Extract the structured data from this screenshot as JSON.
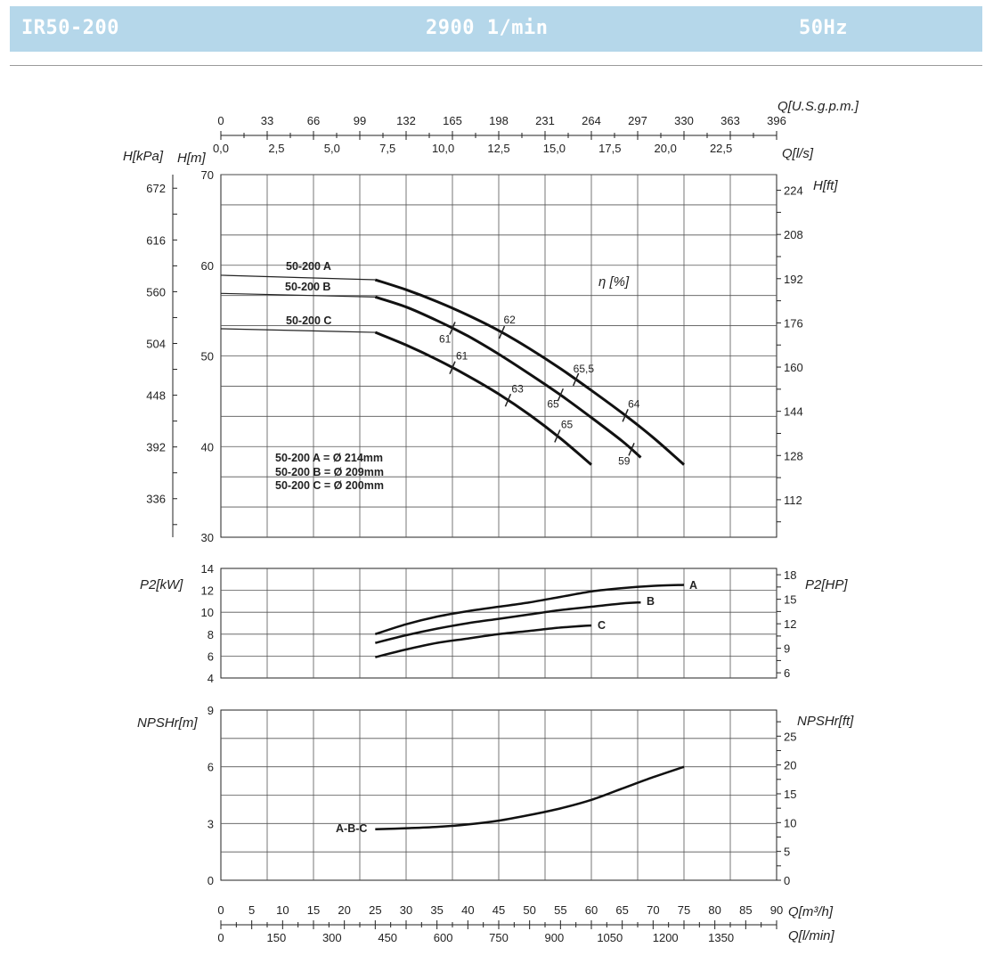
{
  "header": {
    "model": "IR50-200",
    "speed": "2900 1/min",
    "frequency": "50Hz"
  },
  "axes": {
    "q_usgpm": {
      "label": "Q[U.S.g.p.m.]",
      "ticks": [
        "0",
        "33",
        "66",
        "99",
        "132",
        "165",
        "198",
        "231",
        "264",
        "297",
        "330",
        "363",
        "396"
      ]
    },
    "q_ls": {
      "label": "Q[l/s]",
      "ticks": [
        "0,0",
        "2,5",
        "5,0",
        "7,5",
        "10,0",
        "12,5",
        "15,0",
        "17,5",
        "20,0",
        "22,5"
      ]
    },
    "q_m3h": {
      "label": "Q[m³/h]",
      "ticks": [
        "0",
        "5",
        "10",
        "15",
        "20",
        "25",
        "30",
        "35",
        "40",
        "45",
        "50",
        "55",
        "60",
        "65",
        "70",
        "75",
        "80",
        "85",
        "90"
      ]
    },
    "q_lmin": {
      "label": "Q[l/min]",
      "ticks": [
        "0",
        "150",
        "300",
        "450",
        "600",
        "750",
        "900",
        "1050",
        "1200",
        "1350"
      ]
    },
    "h_kpa": {
      "label": "H[kPa]",
      "ticks": [
        "672",
        "616",
        "560",
        "504",
        "448",
        "392",
        "336"
      ]
    },
    "h_m": {
      "label": "H[m]",
      "ticks": [
        "70",
        "60",
        "50",
        "40",
        "30"
      ]
    },
    "h_ft": {
      "label": "H[ft]",
      "ticks": [
        "224",
        "208",
        "192",
        "176",
        "160",
        "144",
        "128",
        "112"
      ]
    },
    "p2_kw": {
      "label": "P2[kW]",
      "ticks": [
        "14",
        "12",
        "10",
        "8",
        "6",
        "4"
      ]
    },
    "p2_hp": {
      "label": "P2[HP]",
      "ticks": [
        "18",
        "15",
        "12",
        "9",
        "6"
      ]
    },
    "npsh_m": {
      "label": "NPSHr[m]",
      "ticks": [
        "9",
        "6",
        "3",
        "0"
      ]
    },
    "npsh_ft": {
      "label": "NPSHr[ft]",
      "ticks": [
        "25",
        "20",
        "15",
        "10",
        "5",
        "0"
      ]
    }
  },
  "efficiency_label": "η [%]",
  "curve_labels": {
    "a": "50-200 A",
    "b": "50-200 B",
    "c": "50-200 C"
  },
  "diameters": [
    "50-200 A = Ø 214mm",
    "50-200 B = Ø 209mm",
    "50-200 C = Ø 200mm"
  ],
  "power_labels": {
    "a": "A",
    "b": "B",
    "c": "C"
  },
  "npsh_label": "A-B-C",
  "chart_data": [
    {
      "type": "line",
      "title": "",
      "xlabel": "Q[m³/h]",
      "ylabel": "H[m]",
      "xlim": [
        0,
        90
      ],
      "ylim": [
        30,
        70
      ],
      "series": [
        {
          "name": "50-200 A",
          "x": [
            0,
            25,
            30,
            35,
            40,
            45,
            50,
            55,
            60,
            65,
            70,
            75
          ],
          "y": [
            58.9,
            58.4,
            57.3,
            56.0,
            54.5,
            52.8,
            50.8,
            48.6,
            46.2,
            43.7,
            41.0,
            38.0
          ]
        },
        {
          "name": "50-200 B",
          "x": [
            0,
            25,
            30,
            35,
            40,
            45,
            50,
            55,
            60,
            65,
            68
          ],
          "y": [
            56.9,
            56.5,
            55.4,
            53.9,
            52.2,
            50.2,
            48.0,
            45.7,
            43.2,
            40.6,
            38.8
          ]
        },
        {
          "name": "50-200 C",
          "x": [
            0,
            25,
            30,
            35,
            40,
            45,
            50,
            55,
            60
          ],
          "y": [
            53.0,
            52.6,
            51.2,
            49.6,
            47.8,
            45.8,
            43.5,
            40.9,
            38.0
          ]
        }
      ],
      "efficiency_marks": [
        {
          "curve": "50-200 A",
          "label": "62",
          "q": 45.5
        },
        {
          "curve": "50-200 A",
          "label": "65,5",
          "q": 57.5
        },
        {
          "curve": "50-200 A",
          "label": "64",
          "q": 65.5
        },
        {
          "curve": "50-200 B",
          "label": "61",
          "q": 37.5
        },
        {
          "curve": "50-200 B",
          "label": "65",
          "q": 55.0
        },
        {
          "curve": "50-200 B",
          "label": "59",
          "q": 66.5
        },
        {
          "curve": "50-200 C",
          "label": "61",
          "q": 37.5
        },
        {
          "curve": "50-200 C",
          "label": "63",
          "q": 46.5
        },
        {
          "curve": "50-200 C",
          "label": "65",
          "q": 54.5
        }
      ]
    },
    {
      "type": "line",
      "title": "",
      "xlabel": "Q[m³/h]",
      "ylabel": "P2[kW]",
      "xlim": [
        0,
        90
      ],
      "ylim": [
        4,
        14
      ],
      "series": [
        {
          "name": "A",
          "x": [
            25,
            30,
            35,
            40,
            45,
            50,
            55,
            60,
            65,
            70,
            75
          ],
          "y": [
            8.0,
            8.9,
            9.6,
            10.1,
            10.5,
            10.9,
            11.4,
            11.9,
            12.2,
            12.4,
            12.5
          ]
        },
        {
          "name": "B",
          "x": [
            25,
            30,
            35,
            40,
            45,
            50,
            55,
            60,
            65,
            68
          ],
          "y": [
            7.2,
            7.9,
            8.5,
            9.0,
            9.4,
            9.8,
            10.2,
            10.5,
            10.8,
            10.9
          ]
        },
        {
          "name": "C",
          "x": [
            25,
            30,
            35,
            40,
            45,
            50,
            55,
            60
          ],
          "y": [
            5.9,
            6.6,
            7.2,
            7.6,
            8.0,
            8.3,
            8.6,
            8.8
          ]
        }
      ]
    },
    {
      "type": "line",
      "title": "",
      "xlabel": "Q[m³/h]",
      "ylabel": "NPSHr[m]",
      "xlim": [
        0,
        90
      ],
      "ylim": [
        0,
        9
      ],
      "series": [
        {
          "name": "A-B-C",
          "x": [
            25,
            30,
            35,
            40,
            45,
            50,
            55,
            60,
            65,
            70,
            75
          ],
          "y": [
            2.7,
            2.75,
            2.82,
            2.95,
            3.15,
            3.45,
            3.8,
            4.25,
            4.85,
            5.45,
            6.0
          ]
        }
      ]
    }
  ]
}
